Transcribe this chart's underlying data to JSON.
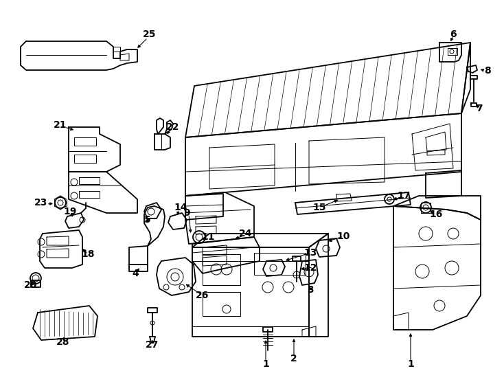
{
  "bg_color": "#ffffff",
  "lc": "#000000",
  "lw": 1.3,
  "tlw": 0.7,
  "fig_w": 7.34,
  "fig_h": 5.4,
  "dpi": 100
}
